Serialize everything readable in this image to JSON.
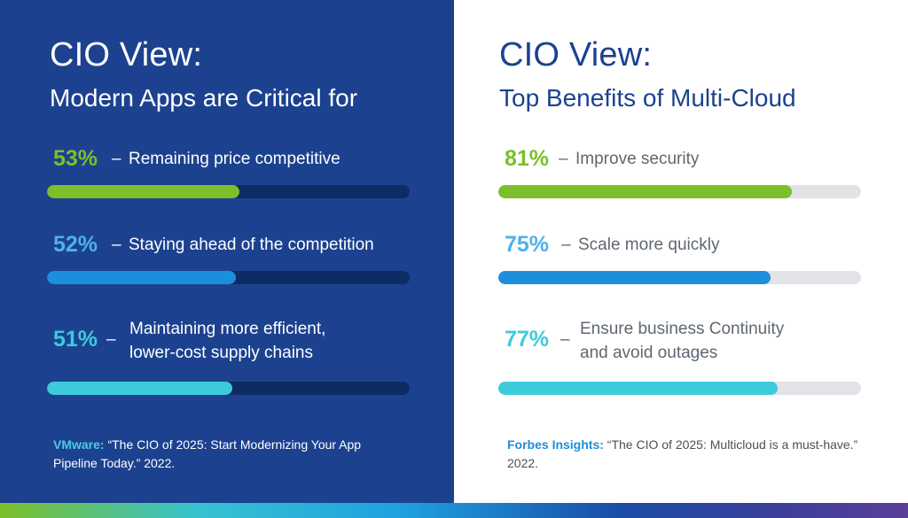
{
  "colors": {
    "left_bg": "#1c428f",
    "green": "#7bbf2a",
    "blue": "#1b8fdb",
    "cyan": "#3ccbdc",
    "text_gray": "#5f6770"
  },
  "chart_data": [
    {
      "type": "bar",
      "title": "CIO View:",
      "subtitle": "Modern Apps are Critical for",
      "categories": [
        "Remaining price competitive",
        "Staying ahead of the competition",
        "Maintaining more efficient, lower-cost supply chains"
      ],
      "label_lines": [
        [
          "Remaining price competitive"
        ],
        [
          "Staying ahead of the competition"
        ],
        [
          "Maintaining more efficient,",
          "lower-cost supply chains"
        ]
      ],
      "percent_labels": [
        "53%",
        "52%",
        "51%"
      ],
      "values": [
        53,
        52,
        51
      ],
      "ylim": [
        0,
        100
      ],
      "bar_colors": [
        "#7bbf2a",
        "#1b8fdb",
        "#3ccbdc"
      ],
      "separator": "–",
      "source": {
        "name": "VMware:",
        "text": "“The CIO of 2025: Start Modernizing Your App Pipeline Today.” 2022."
      }
    },
    {
      "type": "bar",
      "title": "CIO View:",
      "subtitle": "Top Benefits of Multi-Cloud",
      "categories": [
        "Improve security",
        "Scale more quickly",
        "Ensure business Continuity and avoid outages"
      ],
      "label_lines": [
        [
          "Improve security"
        ],
        [
          "Scale more quickly"
        ],
        [
          "Ensure business Continuity",
          "and avoid outages"
        ]
      ],
      "percent_labels": [
        "81%",
        "75%",
        "77%"
      ],
      "values": [
        81,
        75,
        77
      ],
      "ylim": [
        0,
        100
      ],
      "bar_colors": [
        "#7bbf2a",
        "#1b8fdb",
        "#3ccbdc"
      ],
      "separator": "–",
      "source": {
        "name": "Forbes Insights:",
        "text": "“The CIO of 2025: Multicloud is a must-have.” 2022."
      }
    }
  ]
}
